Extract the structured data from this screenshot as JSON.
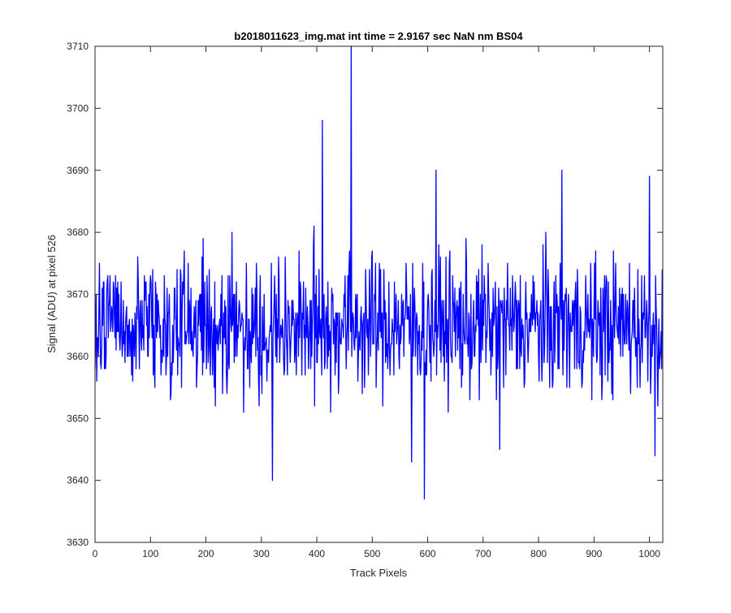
{
  "chart_data": {
    "type": "line",
    "title": "b2018011623_img.mat int time = 2.9167 sec  NaN nm BS04",
    "xlabel": "Track Pixels",
    "ylabel": "Signal (ADU) at pixel 526",
    "xlim": [
      0,
      1024
    ],
    "ylim": [
      3630,
      3710
    ],
    "xticks": [
      0,
      100,
      200,
      300,
      400,
      500,
      600,
      700,
      800,
      900,
      1000
    ],
    "yticks": [
      3630,
      3640,
      3650,
      3660,
      3670,
      3680,
      3690,
      3700,
      3710
    ],
    "grid": false,
    "legend": "none",
    "series_color": "#0000ff",
    "series": [
      {
        "mean": 3665,
        "range": [
          3637,
          3710
        ],
        "n_points": 1024,
        "notable_points": [
          {
            "x": 320,
            "y": 3640
          },
          {
            "x": 410,
            "y": 3698
          },
          {
            "x": 462,
            "y": 3710
          },
          {
            "x": 571,
            "y": 3643
          },
          {
            "x": 594,
            "y": 3637
          },
          {
            "x": 615,
            "y": 3690
          },
          {
            "x": 730,
            "y": 3645
          },
          {
            "x": 842,
            "y": 3690
          },
          {
            "x": 1000,
            "y": 3689
          },
          {
            "x": 1010,
            "y": 3644
          }
        ]
      }
    ]
  }
}
